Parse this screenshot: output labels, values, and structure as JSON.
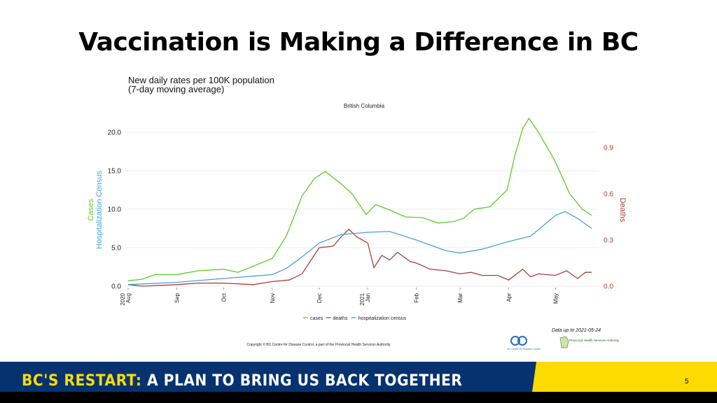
{
  "slide": {
    "title": "Vaccination is Making a Difference in BC",
    "footer_highlight": "BC'S RESTART:",
    "footer_rest": " A PLAN TO BRING US BACK TOGETHER",
    "page_number": "5"
  },
  "chart_data": {
    "type": "line",
    "title": "New daily rates per 100K population",
    "subtitle": "(7-day moving average)",
    "panel_label": "British Columbia",
    "ylabel_left": [
      "Cases",
      "Hospitalization Census"
    ],
    "ylabel_right": "Deaths",
    "xlim": [
      "2020-08-01",
      "2021-05-24"
    ],
    "ylim_left": [
      0,
      20
    ],
    "ylim_right": [
      0,
      0.9
    ],
    "yticks_left": [
      "0.0",
      "5.0",
      "10.0",
      "15.0",
      "20.0"
    ],
    "yticks_right": [
      "0.0",
      "0.3",
      "0.6",
      "0.9"
    ],
    "xticks": [
      {
        "date": "2020-08-01",
        "label": "Aug",
        "year": "2020"
      },
      {
        "date": "2020-09-01",
        "label": "Sep"
      },
      {
        "date": "2020-10-01",
        "label": "Oct"
      },
      {
        "date": "2020-11-01",
        "label": "Nov"
      },
      {
        "date": "2020-12-01",
        "label": "Dec"
      },
      {
        "date": "2021-01-01",
        "label": "Jan",
        "year": "2021"
      },
      {
        "date": "2021-02-01",
        "label": "Feb"
      },
      {
        "date": "2021-03-01",
        "label": "Mar"
      },
      {
        "date": "2021-04-01",
        "label": "Apr"
      },
      {
        "date": "2021-05-01",
        "label": "May"
      }
    ],
    "legend": {
      "position": "bottom",
      "items": [
        "cases",
        "deaths",
        "hospitalization census"
      ]
    },
    "series": [
      {
        "name": "cases",
        "axis": "left",
        "color": "#5bc92c",
        "points": [
          [
            "2020-08-01",
            0.7
          ],
          [
            "2020-08-10",
            0.9
          ],
          [
            "2020-08-18",
            1.5
          ],
          [
            "2020-09-01",
            1.5
          ],
          [
            "2020-09-15",
            2.0
          ],
          [
            "2020-10-01",
            2.2
          ],
          [
            "2020-10-10",
            1.8
          ],
          [
            "2020-10-20",
            2.6
          ],
          [
            "2020-11-01",
            3.6
          ],
          [
            "2020-11-10",
            6.5
          ],
          [
            "2020-11-20",
            11.7
          ],
          [
            "2020-11-28",
            14.0
          ],
          [
            "2020-12-05",
            14.9
          ],
          [
            "2020-12-15",
            13.3
          ],
          [
            "2020-12-22",
            12.0
          ],
          [
            "2020-12-31",
            9.3
          ],
          [
            "2021-01-06",
            10.6
          ],
          [
            "2021-01-15",
            9.9
          ],
          [
            "2021-01-25",
            9.0
          ],
          [
            "2021-02-05",
            8.9
          ],
          [
            "2021-02-15",
            8.2
          ],
          [
            "2021-02-25",
            8.4
          ],
          [
            "2021-03-03",
            8.8
          ],
          [
            "2021-03-10",
            10.0
          ],
          [
            "2021-03-20",
            10.3
          ],
          [
            "2021-03-31",
            12.5
          ],
          [
            "2021-04-05",
            17.0
          ],
          [
            "2021-04-10",
            20.5
          ],
          [
            "2021-04-14",
            21.8
          ],
          [
            "2021-04-20",
            20.0
          ],
          [
            "2021-04-30",
            16.5
          ],
          [
            "2021-05-10",
            12.0
          ],
          [
            "2021-05-18",
            10.0
          ],
          [
            "2021-05-24",
            9.2
          ]
        ]
      },
      {
        "name": "deaths",
        "axis": "right",
        "color": "#a8403a",
        "points": [
          [
            "2020-08-01",
            0.01
          ],
          [
            "2020-08-10",
            0.0
          ],
          [
            "2020-09-01",
            0.01
          ],
          [
            "2020-09-15",
            0.02
          ],
          [
            "2020-10-01",
            0.02
          ],
          [
            "2020-10-20",
            0.01
          ],
          [
            "2020-11-01",
            0.03
          ],
          [
            "2020-11-12",
            0.04
          ],
          [
            "2020-11-20",
            0.08
          ],
          [
            "2020-12-01",
            0.25
          ],
          [
            "2020-12-10",
            0.26
          ],
          [
            "2020-12-15",
            0.32
          ],
          [
            "2020-12-20",
            0.37
          ],
          [
            "2020-12-25",
            0.32
          ],
          [
            "2021-01-01",
            0.28
          ],
          [
            "2021-01-05",
            0.12
          ],
          [
            "2021-01-10",
            0.2
          ],
          [
            "2021-01-15",
            0.17
          ],
          [
            "2021-01-20",
            0.22
          ],
          [
            "2021-01-28",
            0.16
          ],
          [
            "2021-02-01",
            0.15
          ],
          [
            "2021-02-10",
            0.11
          ],
          [
            "2021-02-20",
            0.1
          ],
          [
            "2021-03-01",
            0.08
          ],
          [
            "2021-03-08",
            0.09
          ],
          [
            "2021-03-15",
            0.07
          ],
          [
            "2021-03-25",
            0.07
          ],
          [
            "2021-04-01",
            0.04
          ],
          [
            "2021-04-10",
            0.11
          ],
          [
            "2021-04-15",
            0.06
          ],
          [
            "2021-04-20",
            0.08
          ],
          [
            "2021-05-01",
            0.07
          ],
          [
            "2021-05-08",
            0.1
          ],
          [
            "2021-05-15",
            0.05
          ],
          [
            "2021-05-20",
            0.09
          ],
          [
            "2021-05-24",
            0.09
          ]
        ]
      },
      {
        "name": "hospitalization census",
        "axis": "left",
        "color": "#4b9fdd",
        "points": [
          [
            "2020-08-01",
            0.2
          ],
          [
            "2020-09-01",
            0.5
          ],
          [
            "2020-10-01",
            1.0
          ],
          [
            "2020-11-01",
            1.5
          ],
          [
            "2020-11-10",
            2.3
          ],
          [
            "2020-11-20",
            3.8
          ],
          [
            "2020-12-01",
            5.6
          ],
          [
            "2020-12-15",
            6.7
          ],
          [
            "2021-01-01",
            7.0
          ],
          [
            "2021-01-15",
            7.1
          ],
          [
            "2021-02-01",
            6.0
          ],
          [
            "2021-02-20",
            4.6
          ],
          [
            "2021-03-01",
            4.3
          ],
          [
            "2021-03-15",
            4.8
          ],
          [
            "2021-04-01",
            5.8
          ],
          [
            "2021-04-15",
            6.5
          ],
          [
            "2021-05-01",
            9.2
          ],
          [
            "2021-05-07",
            9.7
          ],
          [
            "2021-05-15",
            8.8
          ],
          [
            "2021-05-24",
            7.5
          ]
        ]
      }
    ],
    "annotations": {
      "data_date": "Data up to 2021-05-24",
      "copyright": "Copyright © BC Centre for Disease Control, a part of the Provincial Health Services Authority",
      "logo_bccdc": "BC Centre for Disease Control",
      "logo_phsa": "Provincial Health Services Authority"
    }
  }
}
